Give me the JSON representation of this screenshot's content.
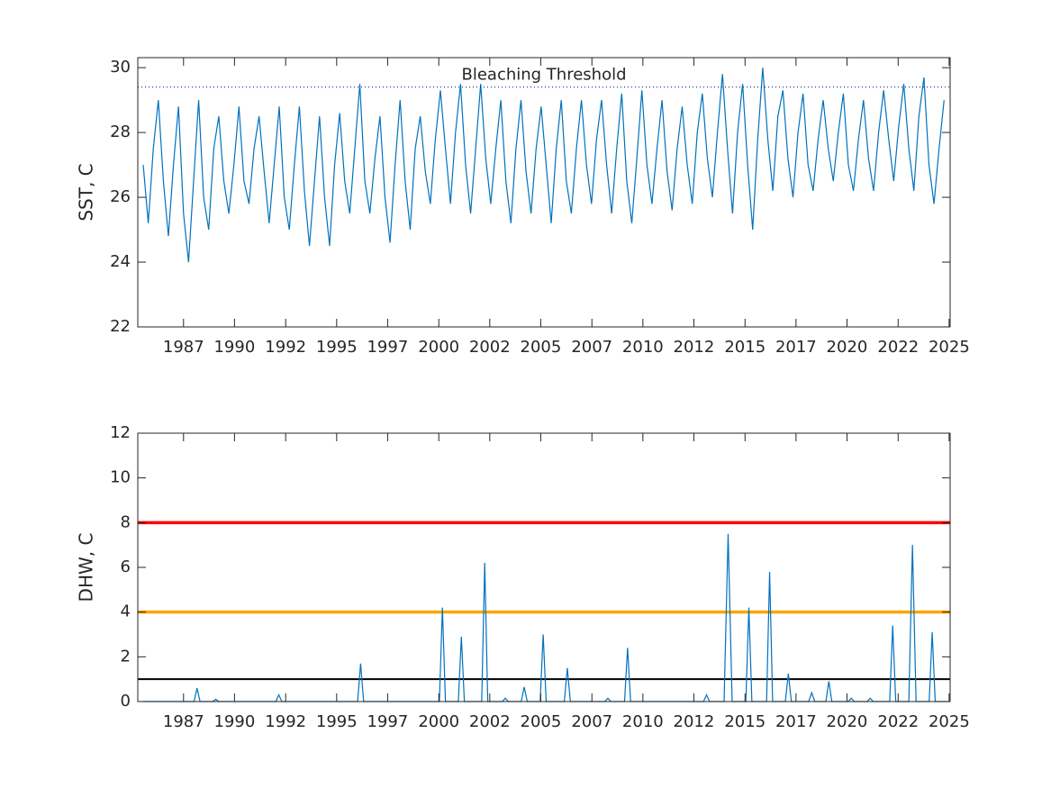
{
  "chart_data": [
    {
      "type": "line",
      "ylabel": "SST, C",
      "annotation": "Bleaching Threshold",
      "threshold": 29.4,
      "xlim": [
        1984.73,
        2025.05
      ],
      "ylim": [
        22,
        30.31
      ],
      "yticks": [
        22,
        24,
        26,
        28,
        30
      ],
      "xticks": [
        {
          "value": 1987.0,
          "label": "1987"
        },
        {
          "value": 1989.53,
          "label": "1990"
        },
        {
          "value": 1992.07,
          "label": "1992"
        },
        {
          "value": 1994.6,
          "label": "1995"
        },
        {
          "value": 1997.13,
          "label": "1997"
        },
        {
          "value": 1999.67,
          "label": "2000"
        },
        {
          "value": 2002.2,
          "label": "2002"
        },
        {
          "value": 2004.73,
          "label": "2005"
        },
        {
          "value": 2007.27,
          "label": "2007"
        },
        {
          "value": 2009.8,
          "label": "2010"
        },
        {
          "value": 2012.33,
          "label": "2012"
        },
        {
          "value": 2014.87,
          "label": "2015"
        },
        {
          "value": 2017.4,
          "label": "2017"
        },
        {
          "value": 2019.93,
          "label": "2020"
        },
        {
          "value": 2022.47,
          "label": "2022"
        },
        {
          "value": 2025.0,
          "label": "2025"
        }
      ],
      "x": [
        1985,
        1985.25,
        1985.5,
        1985.75,
        1986,
        1986.25,
        1986.5,
        1986.75,
        1987,
        1987.25,
        1987.5,
        1987.75,
        1988,
        1988.25,
        1988.5,
        1988.75,
        1989,
        1989.25,
        1989.5,
        1989.75,
        1990,
        1990.25,
        1990.5,
        1990.75,
        1991,
        1991.25,
        1991.5,
        1991.75,
        1992,
        1992.25,
        1992.5,
        1992.75,
        1993,
        1993.25,
        1993.5,
        1993.75,
        1994,
        1994.25,
        1994.5,
        1994.75,
        1995,
        1995.25,
        1995.5,
        1995.75,
        1996,
        1996.25,
        1996.5,
        1996.75,
        1997,
        1997.25,
        1997.5,
        1997.75,
        1998,
        1998.25,
        1998.5,
        1998.75,
        1999,
        1999.25,
        1999.5,
        1999.75,
        2000,
        2000.25,
        2000.5,
        2000.75,
        2001,
        2001.25,
        2001.5,
        2001.75,
        2002,
        2002.25,
        2002.5,
        2002.75,
        2003,
        2003.25,
        2003.5,
        2003.75,
        2004,
        2004.25,
        2004.5,
        2004.75,
        2005,
        2005.25,
        2005.5,
        2005.75,
        2006,
        2006.25,
        2006.5,
        2006.75,
        2007,
        2007.25,
        2007.5,
        2007.75,
        2008,
        2008.25,
        2008.5,
        2008.75,
        2009,
        2009.25,
        2009.5,
        2009.75,
        2010,
        2010.25,
        2010.5,
        2010.75,
        2011,
        2011.25,
        2011.5,
        2011.75,
        2012,
        2012.25,
        2012.5,
        2012.75,
        2013,
        2013.25,
        2013.5,
        2013.75,
        2014,
        2014.25,
        2014.5,
        2014.75,
        2015,
        2015.25,
        2015.5,
        2015.75,
        2016,
        2016.25,
        2016.5,
        2016.75,
        2017,
        2017.25,
        2017.5,
        2017.75,
        2018,
        2018.25,
        2018.5,
        2018.75,
        2019,
        2019.25,
        2019.5,
        2019.75,
        2020,
        2020.25,
        2020.5,
        2020.75,
        2021,
        2021.25,
        2021.5,
        2021.75,
        2022,
        2022.25,
        2022.5,
        2022.75,
        2023,
        2023.25,
        2023.5,
        2023.75,
        2024,
        2024.25,
        2024.5,
        2024.75
      ],
      "series": [
        {
          "color": "#0072BD",
          "values": [
            27.0,
            25.2,
            27.5,
            29.0,
            26.5,
            24.8,
            27.0,
            28.8,
            25.5,
            24.0,
            26.5,
            29.0,
            26.0,
            25.0,
            27.5,
            28.5,
            26.5,
            25.5,
            27.0,
            28.8,
            26.5,
            25.8,
            27.5,
            28.5,
            26.8,
            25.2,
            27.0,
            28.8,
            26.0,
            25.0,
            27.0,
            28.8,
            26.2,
            24.5,
            26.5,
            28.5,
            26.0,
            24.5,
            27.0,
            28.6,
            26.5,
            25.5,
            27.5,
            29.5,
            26.5,
            25.5,
            27.2,
            28.5,
            26.0,
            24.6,
            27.0,
            29.0,
            26.5,
            25.0,
            27.5,
            28.5,
            26.8,
            25.8,
            27.8,
            29.3,
            27.5,
            25.8,
            28.0,
            29.5,
            27.0,
            25.5,
            27.5,
            29.5,
            27.2,
            25.8,
            27.5,
            29.0,
            26.5,
            25.2,
            27.5,
            29.0,
            26.8,
            25.5,
            27.5,
            28.8,
            27.0,
            25.2,
            27.5,
            29.0,
            26.5,
            25.5,
            27.5,
            29.0,
            27.0,
            25.8,
            27.8,
            29.0,
            27.0,
            25.5,
            27.5,
            29.2,
            26.5,
            25.2,
            27.2,
            29.3,
            27.0,
            25.8,
            27.5,
            29.0,
            26.8,
            25.6,
            27.5,
            28.8,
            27.0,
            25.8,
            28.0,
            29.2,
            27.2,
            26.0,
            28.0,
            29.8,
            27.5,
            25.5,
            28.0,
            29.5,
            27.0,
            25.0,
            27.8,
            30.0,
            27.8,
            26.2,
            28.5,
            29.3,
            27.2,
            26.0,
            28.0,
            29.2,
            27.0,
            26.2,
            27.8,
            29.0,
            27.5,
            26.5,
            28.0,
            29.2,
            27.0,
            26.2,
            27.8,
            29.0,
            27.2,
            26.2,
            28.0,
            29.3,
            27.8,
            26.5,
            28.2,
            29.5,
            27.5,
            26.2,
            28.5,
            29.7,
            27.0,
            25.8,
            27.5,
            29.0
          ]
        }
      ]
    },
    {
      "type": "line",
      "ylabel": "DHW, C",
      "xlim": [
        1984.73,
        2025.05
      ],
      "ylim": [
        0,
        12
      ],
      "yticks": [
        0,
        2,
        4,
        6,
        8,
        10,
        12
      ],
      "xticks": [
        {
          "value": 1987.0,
          "label": "1987"
        },
        {
          "value": 1989.53,
          "label": "1990"
        },
        {
          "value": 1992.07,
          "label": "1992"
        },
        {
          "value": 1994.6,
          "label": "1995"
        },
        {
          "value": 1997.13,
          "label": "1997"
        },
        {
          "value": 1999.67,
          "label": "2000"
        },
        {
          "value": 2002.2,
          "label": "2002"
        },
        {
          "value": 2004.73,
          "label": "2005"
        },
        {
          "value": 2007.27,
          "label": "2007"
        },
        {
          "value": 2009.8,
          "label": "2010"
        },
        {
          "value": 2012.33,
          "label": "2012"
        },
        {
          "value": 2014.87,
          "label": "2015"
        },
        {
          "value": 2017.4,
          "label": "2017"
        },
        {
          "value": 2019.93,
          "label": "2020"
        },
        {
          "value": 2022.47,
          "label": "2022"
        },
        {
          "value": 2025.0,
          "label": "2025"
        }
      ],
      "reference_lines": [
        {
          "value": 1,
          "color": "#000000"
        },
        {
          "value": 4,
          "color": "#FFA500"
        },
        {
          "value": 8,
          "color": "#FF0000"
        }
      ],
      "x": [
        1985,
        1987.52,
        1987.67,
        1987.82,
        1988.45,
        1988.6,
        1988.75,
        1991.58,
        1991.73,
        1991.88,
        1995.64,
        1995.79,
        1995.94,
        1999.7,
        1999.85,
        2000.0,
        2000.64,
        2000.79,
        2000.94,
        2001.8,
        2001.95,
        2002.1,
        2002.82,
        2002.97,
        2003.12,
        2003.76,
        2003.91,
        2004.06,
        2004.7,
        2004.85,
        2005.0,
        2005.9,
        2006.05,
        2006.2,
        2007.91,
        2008.06,
        2008.21,
        2008.89,
        2009.04,
        2009.19,
        2012.81,
        2012.96,
        2013.11,
        2013.83,
        2014.03,
        2014.23,
        2014.91,
        2015.06,
        2015.21,
        2015.94,
        2016.09,
        2016.24,
        2016.87,
        2017.02,
        2017.17,
        2018.03,
        2018.18,
        2018.33,
        2018.88,
        2019.03,
        2019.18,
        2019.99,
        2020.14,
        2020.29,
        2020.93,
        2021.08,
        2021.23,
        2022.05,
        2022.2,
        2022.35,
        2023.0,
        2023.18,
        2023.36,
        2024.01,
        2024.16,
        2024.31,
        2024.95
      ],
      "series": [
        {
          "color": "#0072BD",
          "values": [
            0,
            0,
            0.6,
            0,
            0,
            0.1,
            0,
            0,
            0.3,
            0,
            0,
            1.7,
            0,
            0,
            4.2,
            0,
            0,
            2.9,
            0,
            0,
            6.2,
            0,
            0,
            0.15,
            0,
            0,
            0.65,
            0,
            0,
            3.0,
            0,
            0,
            1.5,
            0,
            0,
            0.15,
            0,
            0,
            2.4,
            0,
            0,
            0.3,
            0,
            0,
            7.5,
            0,
            0,
            4.2,
            0,
            0,
            5.8,
            0,
            0,
            1.25,
            0,
            0,
            0.4,
            0,
            0,
            0.9,
            0,
            0,
            0.15,
            0,
            0,
            0.15,
            0,
            0,
            3.4,
            0,
            0,
            7.0,
            0,
            0,
            3.1,
            0,
            0
          ]
        }
      ]
    }
  ]
}
